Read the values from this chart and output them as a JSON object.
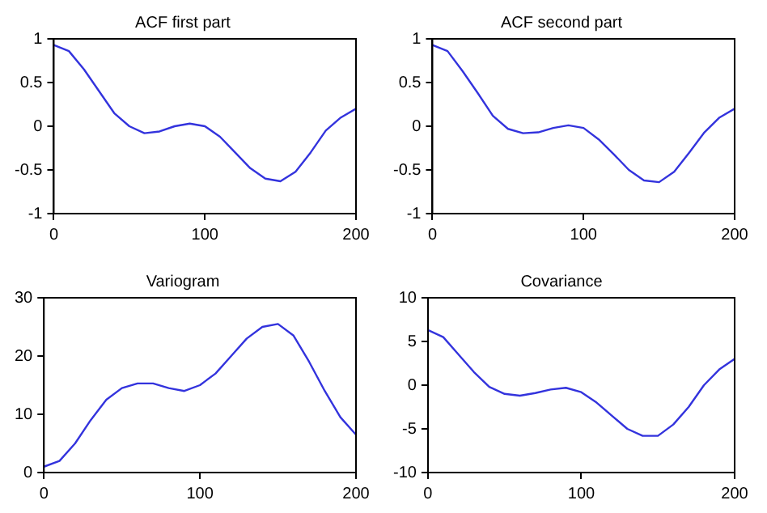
{
  "chart_data": [
    {
      "type": "line",
      "title": "ACF first part",
      "x": [
        0,
        10,
        20,
        30,
        40,
        50,
        60,
        70,
        80,
        90,
        100,
        110,
        120,
        130,
        140,
        150,
        160,
        170,
        180,
        190,
        200
      ],
      "series": [
        {
          "color": "#3333dd",
          "values": [
            0.93,
            0.86,
            0.65,
            0.4,
            0.15,
            0.0,
            -0.08,
            -0.06,
            0.0,
            0.03,
            0.0,
            -0.12,
            -0.3,
            -0.48,
            -0.6,
            -0.63,
            -0.52,
            -0.3,
            -0.05,
            0.1,
            0.2
          ]
        }
      ],
      "xlim": [
        0,
        200
      ],
      "xticks": [
        0,
        100,
        200
      ],
      "ylim": [
        -1,
        1
      ],
      "yticks": [
        -1,
        -0.5,
        0,
        0.5,
        1
      ],
      "grid": false,
      "legend": false,
      "marker": "none",
      "line_style": "solid"
    },
    {
      "type": "line",
      "title": "ACF second part",
      "x": [
        0,
        10,
        20,
        30,
        40,
        50,
        60,
        70,
        80,
        90,
        100,
        110,
        120,
        130,
        140,
        150,
        160,
        170,
        180,
        190,
        200
      ],
      "series": [
        {
          "color": "#3333dd",
          "values": [
            0.93,
            0.86,
            0.63,
            0.38,
            0.12,
            -0.03,
            -0.08,
            -0.07,
            -0.02,
            0.01,
            -0.02,
            -0.15,
            -0.32,
            -0.5,
            -0.62,
            -0.64,
            -0.52,
            -0.3,
            -0.07,
            0.1,
            0.2
          ]
        }
      ],
      "xlim": [
        0,
        200
      ],
      "xticks": [
        0,
        100,
        200
      ],
      "ylim": [
        -1,
        1
      ],
      "yticks": [
        -1,
        -0.5,
        0,
        0.5,
        1
      ],
      "grid": false,
      "legend": false,
      "marker": "none",
      "line_style": "solid"
    },
    {
      "type": "line",
      "title": "Variogram",
      "x": [
        0,
        10,
        20,
        30,
        40,
        50,
        60,
        70,
        80,
        90,
        100,
        110,
        120,
        130,
        140,
        150,
        160,
        170,
        180,
        190,
        200
      ],
      "series": [
        {
          "color": "#3333dd",
          "values": [
            1,
            2,
            5,
            9,
            12.5,
            14.5,
            15.3,
            15.3,
            14.5,
            14,
            15,
            17,
            20,
            23,
            25,
            25.5,
            23.5,
            19,
            14,
            9.5,
            6.5
          ]
        }
      ],
      "xlim": [
        0,
        200
      ],
      "xticks": [
        0,
        100,
        200
      ],
      "ylim": [
        0,
        30
      ],
      "yticks": [
        0,
        10,
        20,
        30
      ],
      "grid": false,
      "legend": false,
      "marker": "none",
      "line_style": "solid"
    },
    {
      "type": "line",
      "title": "Covariance",
      "x": [
        0,
        10,
        20,
        30,
        40,
        50,
        60,
        70,
        80,
        90,
        100,
        110,
        120,
        130,
        140,
        150,
        160,
        170,
        180,
        190,
        200
      ],
      "series": [
        {
          "color": "#3333dd",
          "values": [
            6.3,
            5.5,
            3.5,
            1.5,
            -0.2,
            -1,
            -1.2,
            -0.9,
            -0.5,
            -0.3,
            -0.8,
            -2,
            -3.5,
            -5,
            -5.8,
            -5.8,
            -4.5,
            -2.5,
            0,
            1.8,
            3
          ]
        }
      ],
      "xlim": [
        0,
        200
      ],
      "xticks": [
        0,
        100,
        200
      ],
      "ylim": [
        -10,
        10
      ],
      "yticks": [
        -10,
        -5,
        0,
        5,
        10
      ],
      "grid": false,
      "legend": false,
      "marker": "none",
      "line_style": "solid"
    }
  ]
}
